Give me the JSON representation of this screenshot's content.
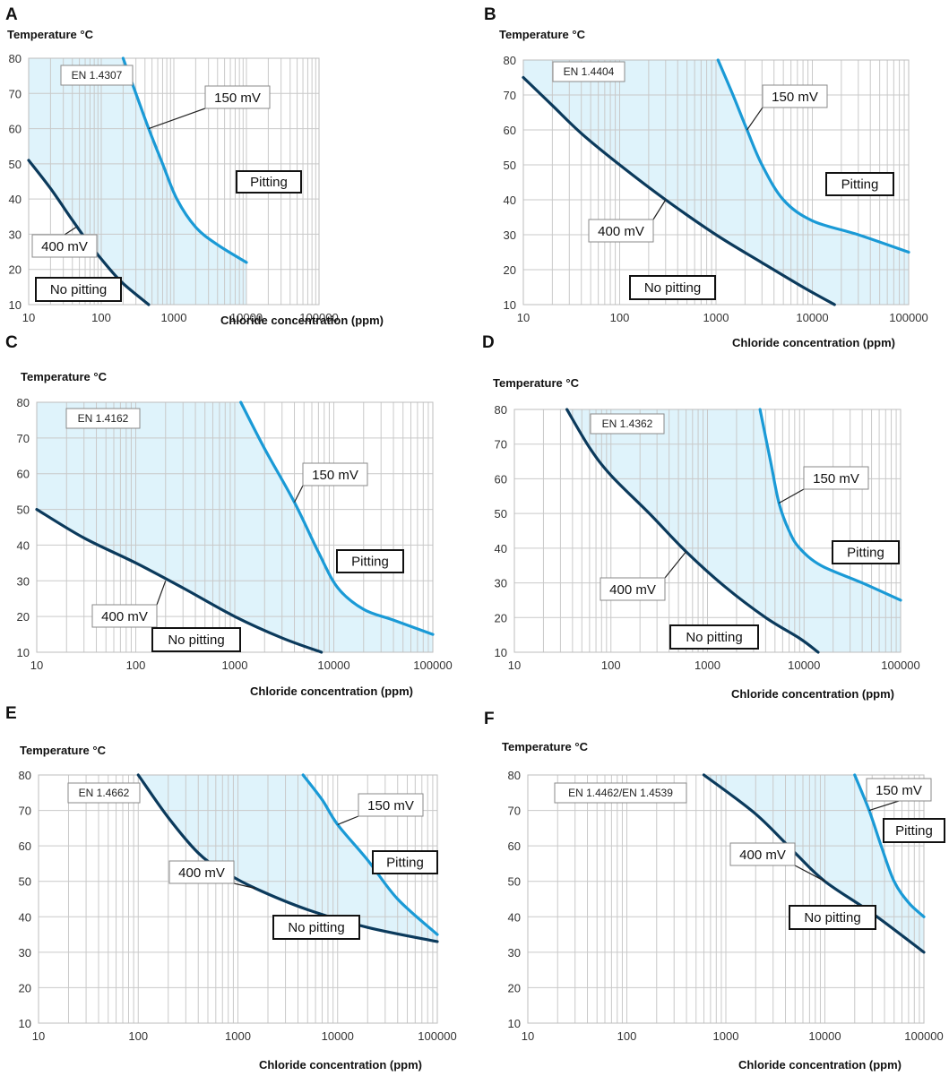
{
  "figure": {
    "panel_letters": [
      "A",
      "B",
      "C",
      "D",
      "E",
      "F"
    ]
  },
  "chart_data": [
    {
      "type": "line",
      "panel": "A",
      "title": "",
      "grade_label": "EN 1.4307",
      "ylabel": "Temperature °C",
      "xlabel": "Chloride concentration (ppm)",
      "x_scale": "log",
      "xlim": [
        10,
        100000
      ],
      "ylim": [
        10,
        80
      ],
      "xticks": [
        "10",
        "100",
        "1000",
        "10000",
        "100000"
      ],
      "yticks": [
        "10",
        "20",
        "30",
        "40",
        "50",
        "60",
        "70",
        "80"
      ],
      "grid": true,
      "series": [
        {
          "name": "150 mV",
          "color": "#1a9ad6",
          "points": [
            [
              200,
              80
            ],
            [
              300,
              70
            ],
            [
              450,
              60
            ],
            [
              700,
              50
            ],
            [
              1100,
              40
            ],
            [
              2000,
              32
            ],
            [
              4000,
              27
            ],
            [
              10000,
              22
            ]
          ]
        },
        {
          "name": "400 mV",
          "color": "#0b3a5c",
          "points": [
            [
              10,
              51
            ],
            [
              20,
              43
            ],
            [
              40,
              34
            ],
            [
              70,
              27
            ],
            [
              120,
              21
            ],
            [
              200,
              16
            ],
            [
              450,
              10
            ]
          ]
        }
      ],
      "shaded_region": {
        "color": "#dff3fb"
      },
      "annotations": [
        "150 mV",
        "400 mV",
        "Pitting",
        "No pitting"
      ]
    },
    {
      "type": "line",
      "panel": "B",
      "title": "",
      "grade_label": "EN 1.4404",
      "ylabel": "Temperature °C",
      "xlabel": "Chloride concentration (ppm)",
      "x_scale": "log",
      "xlim": [
        10,
        100000
      ],
      "ylim": [
        10,
        80
      ],
      "xticks": [
        "10",
        "100",
        "1000",
        "10000",
        "100000"
      ],
      "yticks": [
        "10",
        "20",
        "30",
        "40",
        "50",
        "60",
        "70",
        "80"
      ],
      "grid": true,
      "series": [
        {
          "name": "150 mV",
          "color": "#1a9ad6",
          "points": [
            [
              1050,
              80
            ],
            [
              1500,
              70
            ],
            [
              2100,
              60
            ],
            [
              3000,
              50
            ],
            [
              5000,
              40
            ],
            [
              10000,
              34
            ],
            [
              30000,
              30
            ],
            [
              100000,
              25
            ]
          ]
        },
        {
          "name": "400 mV",
          "color": "#0b3a5c",
          "points": [
            [
              10,
              75
            ],
            [
              20,
              67
            ],
            [
              40,
              59
            ],
            [
              100,
              50
            ],
            [
              300,
              40
            ],
            [
              1000,
              30
            ],
            [
              3000,
              22
            ],
            [
              8000,
              15
            ],
            [
              17000,
              10
            ]
          ]
        }
      ],
      "shaded_region": {
        "color": "#dff3fb"
      },
      "annotations": [
        "150 mV",
        "400 mV",
        "Pitting",
        "No pitting"
      ]
    },
    {
      "type": "line",
      "panel": "C",
      "title": "",
      "grade_label": "EN 1.4162",
      "ylabel": "Temperature °C",
      "xlabel": "Chloride concentration (ppm)",
      "x_scale": "log",
      "xlim": [
        10,
        100000
      ],
      "ylim": [
        10,
        80
      ],
      "xticks": [
        "10",
        "100",
        "1000",
        "10000",
        "100000"
      ],
      "yticks": [
        "10",
        "20",
        "30",
        "40",
        "50",
        "60",
        "70",
        "80"
      ],
      "grid": true,
      "series": [
        {
          "name": "150 mV",
          "color": "#1a9ad6",
          "points": [
            [
              1150,
              80
            ],
            [
              2000,
              67
            ],
            [
              4000,
              52
            ],
            [
              7000,
              38
            ],
            [
              11000,
              28
            ],
            [
              20000,
              22
            ],
            [
              40000,
              19
            ],
            [
              100000,
              15
            ]
          ]
        },
        {
          "name": "400 mV",
          "color": "#0b3a5c",
          "points": [
            [
              10,
              50
            ],
            [
              30,
              42
            ],
            [
              100,
              35
            ],
            [
              300,
              28
            ],
            [
              1000,
              20
            ],
            [
              3000,
              14
            ],
            [
              7500,
              10
            ]
          ]
        }
      ],
      "shaded_region": {
        "color": "#dff3fb"
      },
      "annotations": [
        "150 mV",
        "400 mV",
        "Pitting",
        "No pitting"
      ]
    },
    {
      "type": "line",
      "panel": "D",
      "title": "",
      "grade_label": "EN 1.4362",
      "ylabel": "Temperature °C",
      "xlabel": "Chloride concentration (ppm)",
      "x_scale": "log",
      "xlim": [
        10,
        100000
      ],
      "ylim": [
        10,
        80
      ],
      "xticks": [
        "10",
        "100",
        "1000",
        "10000",
        "100000"
      ],
      "yticks": [
        "10",
        "20",
        "30",
        "40",
        "50",
        "60",
        "70",
        "80"
      ],
      "grid": true,
      "series": [
        {
          "name": "150 mV",
          "color": "#1a9ad6",
          "points": [
            [
              3500,
              80
            ],
            [
              4500,
              65
            ],
            [
              5500,
              53
            ],
            [
              7000,
              45
            ],
            [
              9000,
              40
            ],
            [
              15000,
              35
            ],
            [
              40000,
              30
            ],
            [
              100000,
              25
            ]
          ]
        },
        {
          "name": "400 mV",
          "color": "#0b3a5c",
          "points": [
            [
              35,
              80
            ],
            [
              60,
              69
            ],
            [
              100,
              61
            ],
            [
              250,
              50
            ],
            [
              600,
              39
            ],
            [
              1500,
              29
            ],
            [
              4000,
              20
            ],
            [
              9000,
              14
            ],
            [
              14000,
              10
            ]
          ]
        }
      ],
      "shaded_region": {
        "color": "#dff3fb"
      },
      "annotations": [
        "150 mV",
        "400 mV",
        "Pitting",
        "No pitting"
      ]
    },
    {
      "type": "line",
      "panel": "E",
      "title": "",
      "grade_label": "EN 1.4662",
      "ylabel": "Temperature °C",
      "xlabel": "Chloride concentration (ppm)",
      "x_scale": "log",
      "xlim": [
        10,
        100000
      ],
      "ylim": [
        10,
        80
      ],
      "xticks": [
        "10",
        "100",
        "1000",
        "10000",
        "100000"
      ],
      "yticks": [
        "10",
        "20",
        "30",
        "40",
        "50",
        "60",
        "70",
        "80"
      ],
      "grid": true,
      "series": [
        {
          "name": "150 mV",
          "color": "#1a9ad6",
          "points": [
            [
              4500,
              80
            ],
            [
              7000,
              73
            ],
            [
              10000,
              66
            ],
            [
              20000,
              56
            ],
            [
              40000,
              45
            ],
            [
              100000,
              35
            ]
          ]
        },
        {
          "name": "400 mV",
          "color": "#0b3a5c",
          "points": [
            [
              100,
              80
            ],
            [
              200,
              68
            ],
            [
              400,
              58
            ],
            [
              700,
              53
            ],
            [
              1500,
              48
            ],
            [
              5000,
              42
            ],
            [
              20000,
              37
            ],
            [
              100000,
              33
            ]
          ]
        }
      ],
      "shaded_region": {
        "color": "#dff3fb"
      },
      "annotations": [
        "150 mV",
        "400 mV",
        "Pitting",
        "No pitting"
      ]
    },
    {
      "type": "line",
      "panel": "F",
      "title": "",
      "grade_label": "EN 1.4462/EN 1.4539",
      "ylabel": "Temperature °C",
      "xlabel": "Chloride concentration (ppm)",
      "x_scale": "log",
      "xlim": [
        10,
        100000
      ],
      "ylim": [
        10,
        80
      ],
      "xticks": [
        "10",
        "100",
        "1000",
        "10000",
        "100000"
      ],
      "yticks": [
        "10",
        "20",
        "30",
        "40",
        "50",
        "60",
        "70",
        "80"
      ],
      "grid": true,
      "series": [
        {
          "name": "150 mV",
          "color": "#1a9ad6",
          "points": [
            [
              20000,
              80
            ],
            [
              28000,
              70
            ],
            [
              37000,
              60
            ],
            [
              50000,
              50
            ],
            [
              70000,
              44
            ],
            [
              100000,
              40
            ]
          ]
        },
        {
          "name": "400 mV",
          "color": "#0b3a5c",
          "points": [
            [
              600,
              80
            ],
            [
              2000,
              69
            ],
            [
              5000,
              58
            ],
            [
              10000,
              50
            ],
            [
              30000,
              41
            ],
            [
              100000,
              30
            ]
          ]
        }
      ],
      "shaded_region": {
        "color": "#dff3fb"
      },
      "annotations": [
        "150 mV",
        "400 mV",
        "Pitting",
        "No pitting"
      ]
    }
  ]
}
